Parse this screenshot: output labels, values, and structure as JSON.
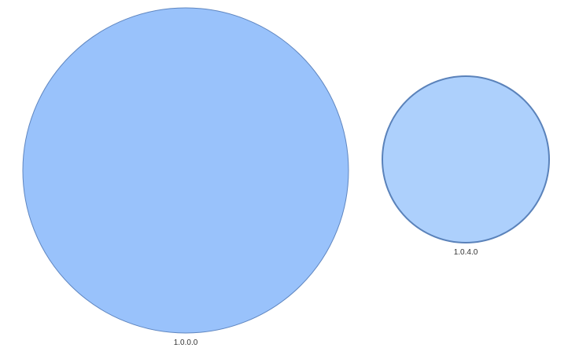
{
  "diagram": {
    "nodes": [
      {
        "label": "1.0.0.0",
        "fill": "#99c2fb",
        "stroke": "#5f86c0"
      },
      {
        "label": "1.0.4.0",
        "fill": "#add0fc",
        "stroke": "#5a82ba"
      }
    ]
  }
}
